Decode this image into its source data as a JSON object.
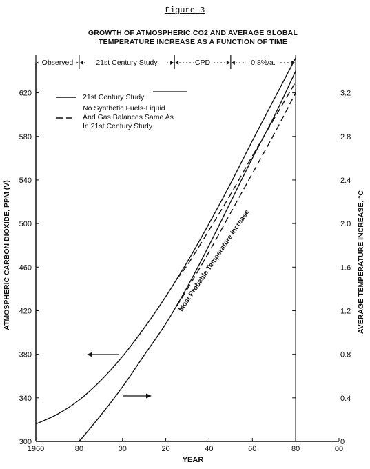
{
  "figure_label": "Figure 3",
  "chart_data": {
    "type": "line",
    "title_line1": "GROWTH OF ATMOSPHERIC CO2 AND AVERAGE GLOBAL",
    "title_line2": "TEMPERATURE INCREASE AS A FUNCTION OF TIME",
    "xlabel": "YEAR",
    "ylabel_left": "ATMOSPHERIC CARBON DIOXIDE, PPM (V)",
    "ylabel_right": "AVERAGE TEMPERATURE INCREASE, °C",
    "xlim": [
      1960,
      2100
    ],
    "ylim_left": [
      300,
      640
    ],
    "ylim_right": [
      0,
      3.4
    ],
    "x_ticks": [
      {
        "value": 1960,
        "label": "1960"
      },
      {
        "value": 1980,
        "label": "80"
      },
      {
        "value": 2000,
        "label": "00"
      },
      {
        "value": 2020,
        "label": "20"
      },
      {
        "value": 2040,
        "label": "40"
      },
      {
        "value": 2060,
        "label": "60"
      },
      {
        "value": 2080,
        "label": "80"
      },
      {
        "value": 2100,
        "label": "00"
      }
    ],
    "y_left_ticks": [
      {
        "value": 300,
        "label": "300"
      },
      {
        "value": 340,
        "label": "340"
      },
      {
        "value": 380,
        "label": "380"
      },
      {
        "value": 420,
        "label": "420"
      },
      {
        "value": 460,
        "label": "460"
      },
      {
        "value": 500,
        "label": "500"
      },
      {
        "value": 540,
        "label": "540"
      },
      {
        "value": 580,
        "label": "580"
      },
      {
        "value": 620,
        "label": "620"
      }
    ],
    "y_right_ticks": [
      {
        "value": 0,
        "label": "0"
      },
      {
        "value": 0.4,
        "label": "0.4"
      },
      {
        "value": 0.8,
        "label": "0.8"
      },
      {
        "value": 1.2,
        "label": "1.2"
      },
      {
        "value": 1.6,
        "label": "1.6"
      },
      {
        "value": 2.0,
        "label": "2.0"
      },
      {
        "value": 2.4,
        "label": "2.4"
      },
      {
        "value": 2.8,
        "label": "2.8"
      },
      {
        "value": 3.2,
        "label": "3.2"
      }
    ],
    "periods": [
      {
        "label": "Observed",
        "start": 1960,
        "end": 1980
      },
      {
        "label": "21st Century Study",
        "start": 1980,
        "end": 2024
      },
      {
        "label": "CPD",
        "start": 2024,
        "end": 2050
      },
      {
        "label": "0.8%/a.",
        "start": 2050,
        "end": 2080
      }
    ],
    "legend": [
      {
        "label": "21st Century Study",
        "style": "solid"
      },
      {
        "label": "No Synthetic Fuels-Liquid And Gas Balances Same As In 21st Century Study",
        "style": "dashed"
      }
    ],
    "legend_position": "top-left",
    "annotation": "Most Probable Temperature Increase",
    "series": [
      {
        "axis": "left",
        "style": "solid",
        "x": [
          1960,
          1970,
          1980,
          1990,
          2000,
          2010,
          2020,
          2030,
          2040,
          2050,
          2060,
          2070,
          2080
        ],
        "y": [
          316,
          325,
          338,
          356,
          378,
          404,
          433,
          465,
          500,
          537,
          576,
          614,
          652
        ]
      },
      {
        "axis": "left",
        "style": "dashed",
        "x": [
          2025,
          2030,
          2040,
          2050,
          2060,
          2070,
          2080
        ],
        "y": [
          449,
          462,
          494,
          527,
          562,
          596,
          630
        ]
      },
      {
        "axis": "right",
        "style": "solid",
        "x": [
          1980,
          1990,
          2000,
          2010,
          2020,
          2030,
          2040,
          2050,
          2060,
          2070,
          2080
        ],
        "y": [
          0,
          0.24,
          0.5,
          0.79,
          1.08,
          1.42,
          1.8,
          2.2,
          2.6,
          2.98,
          3.4
        ]
      },
      {
        "axis": "right",
        "style": "dashed",
        "x": [
          2025,
          2030,
          2040,
          2050,
          2060,
          2070,
          2080
        ],
        "y": [
          1.24,
          1.4,
          1.74,
          2.1,
          2.46,
          2.82,
          3.2
        ]
      }
    ]
  }
}
